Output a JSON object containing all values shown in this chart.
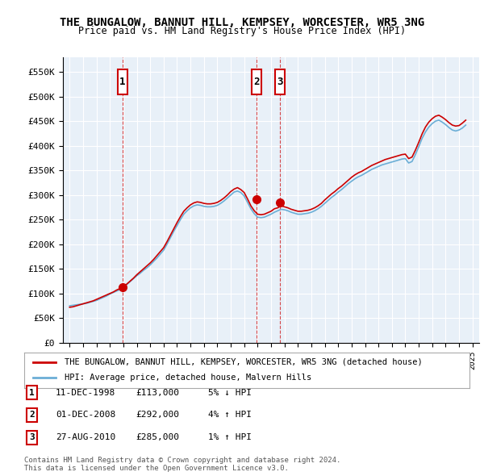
{
  "title": "THE BUNGALOW, BANNUT HILL, KEMPSEY, WORCESTER, WR5 3NG",
  "subtitle": "Price paid vs. HM Land Registry's House Price Index (HPI)",
  "ylabel_ticks": [
    "£0",
    "£50K",
    "£100K",
    "£150K",
    "£200K",
    "£250K",
    "£300K",
    "£350K",
    "£400K",
    "£450K",
    "£500K",
    "£550K"
  ],
  "ytick_values": [
    0,
    50000,
    100000,
    150000,
    200000,
    250000,
    300000,
    350000,
    400000,
    450000,
    500000,
    550000
  ],
  "ylim": [
    0,
    580000
  ],
  "xlim_start": 1994.5,
  "xlim_end": 2025.5,
  "bg_color": "#dce9f7",
  "plot_bg": "#e8f0f8",
  "grid_color": "#ffffff",
  "legend_line1": "THE BUNGALOW, BANNUT HILL, KEMPSEY, WORCESTER, WR5 3NG (detached house)",
  "legend_line2": "HPI: Average price, detached house, Malvern Hills",
  "sale1_date": "11-DEC-1998",
  "sale1_price": "£113,000",
  "sale1_hpi": "5% ↓ HPI",
  "sale2_date": "01-DEC-2008",
  "sale2_price": "£292,000",
  "sale2_hpi": "4% ↑ HPI",
  "sale3_date": "27-AUG-2010",
  "sale3_price": "£285,000",
  "sale3_hpi": "1% ↑ HPI",
  "footer1": "Contains HM Land Registry data © Crown copyright and database right 2024.",
  "footer2": "This data is licensed under the Open Government Licence v3.0.",
  "sale_years": [
    1998.94,
    2008.92,
    2010.65
  ],
  "sale_prices": [
    113000,
    292000,
    285000
  ],
  "hpi_years": [
    1995.0,
    1995.25,
    1995.5,
    1995.75,
    1996.0,
    1996.25,
    1996.5,
    1996.75,
    1997.0,
    1997.25,
    1997.5,
    1997.75,
    1998.0,
    1998.25,
    1998.5,
    1998.75,
    1999.0,
    1999.25,
    1999.5,
    1999.75,
    2000.0,
    2000.25,
    2000.5,
    2000.75,
    2001.0,
    2001.25,
    2001.5,
    2001.75,
    2002.0,
    2002.25,
    2002.5,
    2002.75,
    2003.0,
    2003.25,
    2003.5,
    2003.75,
    2004.0,
    2004.25,
    2004.5,
    2004.75,
    2005.0,
    2005.25,
    2005.5,
    2005.75,
    2006.0,
    2006.25,
    2006.5,
    2006.75,
    2007.0,
    2007.25,
    2007.5,
    2007.75,
    2008.0,
    2008.25,
    2008.5,
    2008.75,
    2009.0,
    2009.25,
    2009.5,
    2009.75,
    2010.0,
    2010.25,
    2010.5,
    2010.75,
    2011.0,
    2011.25,
    2011.5,
    2011.75,
    2012.0,
    2012.25,
    2012.5,
    2012.75,
    2013.0,
    2013.25,
    2013.5,
    2013.75,
    2014.0,
    2014.25,
    2014.5,
    2014.75,
    2015.0,
    2015.25,
    2015.5,
    2015.75,
    2016.0,
    2016.25,
    2016.5,
    2016.75,
    2017.0,
    2017.25,
    2017.5,
    2017.75,
    2018.0,
    2018.25,
    2018.5,
    2018.75,
    2019.0,
    2019.25,
    2019.5,
    2019.75,
    2020.0,
    2020.25,
    2020.5,
    2020.75,
    2021.0,
    2021.25,
    2021.5,
    2021.75,
    2022.0,
    2022.25,
    2022.5,
    2022.75,
    2023.0,
    2023.25,
    2023.5,
    2023.75,
    2024.0,
    2024.25,
    2024.5
  ],
  "hpi_values": [
    75000,
    76000,
    77000,
    78000,
    79000,
    80000,
    82000,
    84000,
    86000,
    89000,
    92000,
    95000,
    99000,
    102000,
    105000,
    108000,
    113000,
    118000,
    124000,
    130000,
    136000,
    141000,
    147000,
    152000,
    158000,
    165000,
    172000,
    180000,
    188000,
    200000,
    213000,
    226000,
    238000,
    250000,
    261000,
    268000,
    274000,
    278000,
    280000,
    279000,
    277000,
    276000,
    276000,
    277000,
    279000,
    283000,
    288000,
    294000,
    300000,
    306000,
    308000,
    305000,
    298000,
    285000,
    272000,
    262000,
    255000,
    254000,
    255000,
    258000,
    261000,
    265000,
    268000,
    271000,
    270000,
    268000,
    265000,
    263000,
    261000,
    261000,
    262000,
    263000,
    265000,
    268000,
    272000,
    277000,
    283000,
    289000,
    295000,
    300000,
    306000,
    311000,
    317000,
    323000,
    328000,
    333000,
    337000,
    340000,
    344000,
    348000,
    352000,
    355000,
    358000,
    361000,
    363000,
    365000,
    367000,
    369000,
    371000,
    373000,
    374000,
    365000,
    368000,
    382000,
    398000,
    415000,
    428000,
    438000,
    445000,
    450000,
    452000,
    448000,
    443000,
    437000,
    432000,
    430000,
    432000,
    436000,
    442000
  ],
  "property_hpi_years": [
    1995.0,
    1995.25,
    1995.5,
    1995.75,
    1996.0,
    1996.25,
    1996.5,
    1996.75,
    1997.0,
    1997.25,
    1997.5,
    1997.75,
    1998.0,
    1998.25,
    1998.5,
    1998.75,
    1999.0,
    1999.25,
    1999.5,
    1999.75,
    2000.0,
    2000.25,
    2000.5,
    2000.75,
    2001.0,
    2001.25,
    2001.5,
    2001.75,
    2002.0,
    2002.25,
    2002.5,
    2002.75,
    2003.0,
    2003.25,
    2003.5,
    2003.75,
    2004.0,
    2004.25,
    2004.5,
    2004.75,
    2005.0,
    2005.25,
    2005.5,
    2005.75,
    2006.0,
    2006.25,
    2006.5,
    2006.75,
    2007.0,
    2007.25,
    2007.5,
    2007.75,
    2008.0,
    2008.25,
    2008.5,
    2008.75,
    2009.0,
    2009.25,
    2009.5,
    2009.75,
    2010.0,
    2010.25,
    2010.5,
    2010.75,
    2011.0,
    2011.25,
    2011.5,
    2011.75,
    2012.0,
    2012.25,
    2012.5,
    2012.75,
    2013.0,
    2013.25,
    2013.5,
    2013.75,
    2014.0,
    2014.25,
    2014.5,
    2014.75,
    2015.0,
    2015.25,
    2015.5,
    2015.75,
    2016.0,
    2016.25,
    2016.5,
    2016.75,
    2017.0,
    2017.25,
    2017.5,
    2017.75,
    2018.0,
    2018.25,
    2018.5,
    2018.75,
    2019.0,
    2019.25,
    2019.5,
    2019.75,
    2020.0,
    2020.25,
    2020.5,
    2020.75,
    2021.0,
    2021.25,
    2021.5,
    2021.75,
    2022.0,
    2022.25,
    2022.5,
    2022.75,
    2023.0,
    2023.25,
    2023.5,
    2023.75,
    2024.0,
    2024.25,
    2024.5
  ],
  "property_values": [
    72000,
    73000,
    75000,
    77000,
    79000,
    81000,
    83000,
    85000,
    88000,
    91000,
    94000,
    97000,
    100000,
    103000,
    107000,
    110000,
    113000,
    119000,
    125000,
    131000,
    138000,
    144000,
    150000,
    156000,
    162000,
    169000,
    177000,
    185000,
    193000,
    205000,
    218000,
    231000,
    244000,
    256000,
    267000,
    274000,
    280000,
    284000,
    286000,
    285000,
    283000,
    282000,
    282000,
    283000,
    285000,
    289000,
    294000,
    300000,
    307000,
    312000,
    315000,
    311000,
    305000,
    292000,
    278000,
    268000,
    261000,
    260000,
    261000,
    264000,
    267000,
    272000,
    274000,
    278000,
    276000,
    274000,
    271000,
    269000,
    267000,
    267000,
    268000,
    269000,
    271000,
    274000,
    278000,
    283000,
    290000,
    296000,
    302000,
    307000,
    313000,
    318000,
    324000,
    330000,
    336000,
    341000,
    345000,
    348000,
    352000,
    356000,
    360000,
    363000,
    366000,
    369000,
    372000,
    374000,
    376000,
    378000,
    380000,
    382000,
    383000,
    374000,
    377000,
    391000,
    407000,
    424000,
    438000,
    448000,
    455000,
    460000,
    462000,
    458000,
    453000,
    447000,
    442000,
    440000,
    441000,
    446000,
    452000
  ]
}
